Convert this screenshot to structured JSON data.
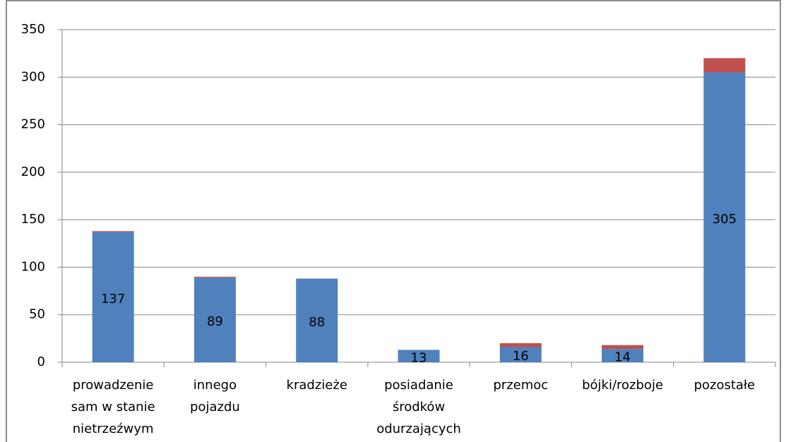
{
  "chart_data": {
    "type": "stacked-bar",
    "categories": [
      [
        "prowadzenie",
        "sam  w stanie",
        "nietrzeźwym"
      ],
      [
        "innego",
        "pojazdu"
      ],
      [
        "kradzieże"
      ],
      [
        "posiadanie",
        "środków",
        "odurzających"
      ],
      [
        "przemoc"
      ],
      [
        "bójki/rozboje"
      ],
      [
        "pozostałe"
      ]
    ],
    "series": [
      {
        "color": "#4f81bd",
        "values": [
          137,
          89,
          88,
          13,
          16,
          14,
          305
        ],
        "show_value_labels": true
      },
      {
        "color": "#c0504d",
        "values": [
          1,
          1,
          0,
          0,
          4,
          4,
          15
        ]
      }
    ],
    "ylim": [
      0,
      350
    ],
    "yticks": [
      0,
      50,
      100,
      150,
      200,
      250,
      300,
      350
    ],
    "grid": true
  }
}
